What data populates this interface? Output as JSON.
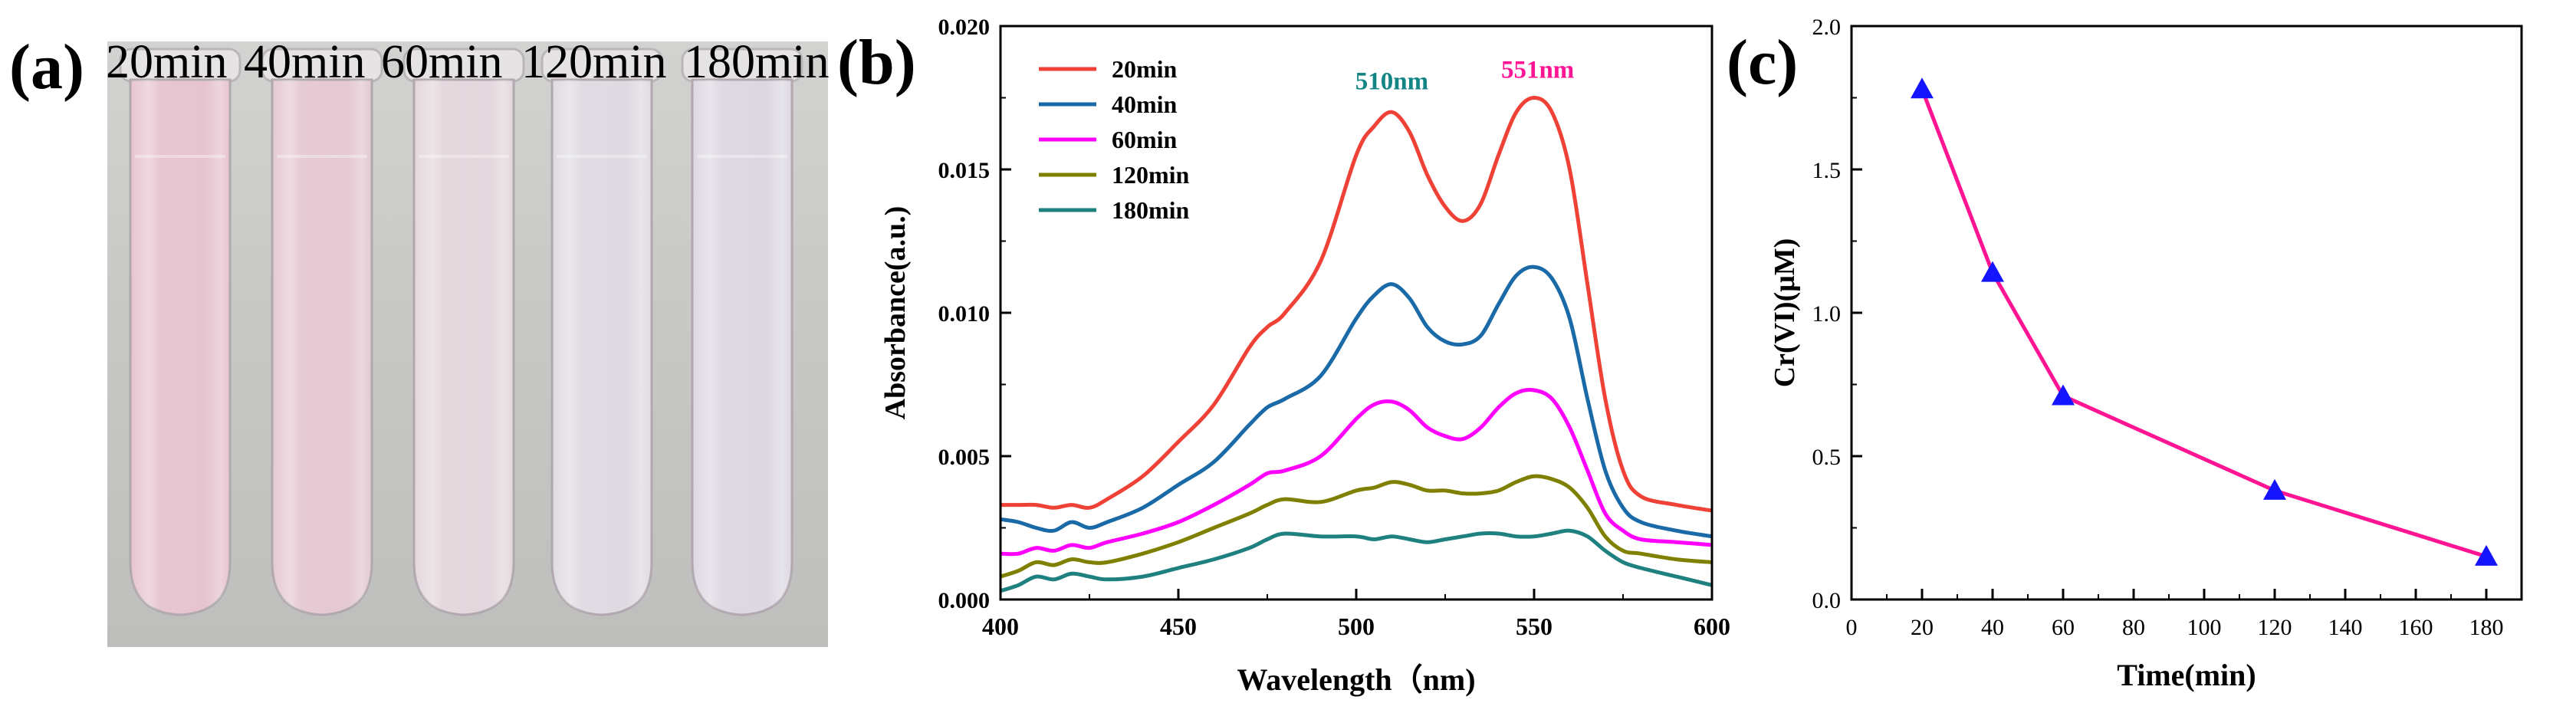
{
  "panels": {
    "a": {
      "letter": "(a)",
      "tube_labels": [
        "20min",
        "40min",
        "60min",
        "120min",
        "180min"
      ],
      "tube_tints": [
        "#e6c3cf",
        "#e4c8d2",
        "#e3d6dc",
        "#dedae2",
        "#dcd8e2"
      ]
    },
    "b": {
      "letter": "(b)"
    },
    "c": {
      "letter": "(c)"
    }
  },
  "colors": {
    "s20": "#ef4136",
    "s40": "#1a6aa8",
    "s60": "#ff00ff",
    "s120": "#7f7f00",
    "s180": "#1f8080",
    "peak510": "#138585",
    "peak551": "#ff1493",
    "line_c": "#ff1493",
    "marker_c": "#1414ff"
  },
  "chart_data": [
    {
      "id": "b",
      "type": "line",
      "xlabel": "Wavelength（nm)",
      "ylabel": "Absorbance(a.u.)",
      "xlim": [
        400,
        600
      ],
      "ylim": [
        0,
        0.02
      ],
      "xticks": [
        "400",
        "450",
        "500",
        "550",
        "600"
      ],
      "yticks": [
        "0.000",
        "0.005",
        "0.010",
        "0.015",
        "0.020"
      ],
      "annotations": [
        {
          "text": "510nm",
          "x": 510,
          "y": 0.0178
        },
        {
          "text": "551nm",
          "x": 551,
          "y": 0.0182
        }
      ],
      "series": [
        {
          "name": "20min",
          "x": [
            400,
            405,
            410,
            415,
            420,
            425,
            430,
            440,
            450,
            460,
            470,
            475,
            480,
            490,
            500,
            505,
            510,
            515,
            520,
            525,
            530,
            535,
            540,
            545,
            550,
            555,
            560,
            565,
            570,
            575,
            580,
            590,
            600
          ],
          "y": [
            0.0033,
            0.0033,
            0.0033,
            0.0032,
            0.0033,
            0.0032,
            0.0035,
            0.0043,
            0.0055,
            0.0068,
            0.0088,
            0.0095,
            0.01,
            0.0118,
            0.0155,
            0.0165,
            0.017,
            0.0163,
            0.0148,
            0.0137,
            0.0132,
            0.0138,
            0.0155,
            0.017,
            0.0175,
            0.017,
            0.015,
            0.011,
            0.007,
            0.0045,
            0.0036,
            0.0033,
            0.0031
          ]
        },
        {
          "name": "40min",
          "x": [
            400,
            405,
            410,
            415,
            420,
            425,
            430,
            440,
            450,
            460,
            470,
            475,
            480,
            490,
            500,
            505,
            510,
            515,
            520,
            525,
            530,
            535,
            540,
            545,
            550,
            555,
            560,
            565,
            570,
            575,
            580,
            590,
            600
          ],
          "y": [
            0.0028,
            0.0027,
            0.0025,
            0.0024,
            0.0027,
            0.0025,
            0.0027,
            0.0032,
            0.004,
            0.0048,
            0.0061,
            0.0067,
            0.007,
            0.0078,
            0.0098,
            0.0106,
            0.011,
            0.0105,
            0.0095,
            0.009,
            0.0089,
            0.0092,
            0.0103,
            0.0113,
            0.0116,
            0.0112,
            0.0098,
            0.007,
            0.0045,
            0.0032,
            0.0027,
            0.0024,
            0.0022
          ]
        },
        {
          "name": "60min",
          "x": [
            400,
            405,
            410,
            415,
            420,
            425,
            430,
            440,
            450,
            460,
            470,
            475,
            480,
            490,
            500,
            505,
            510,
            515,
            520,
            525,
            530,
            535,
            540,
            545,
            550,
            555,
            560,
            565,
            570,
            575,
            580,
            590,
            600
          ],
          "y": [
            0.0016,
            0.0016,
            0.0018,
            0.0017,
            0.0019,
            0.0018,
            0.002,
            0.0023,
            0.0027,
            0.0033,
            0.004,
            0.0044,
            0.0045,
            0.005,
            0.0063,
            0.0068,
            0.0069,
            0.0066,
            0.006,
            0.0057,
            0.0056,
            0.006,
            0.0067,
            0.0072,
            0.0073,
            0.007,
            0.006,
            0.0045,
            0.003,
            0.0024,
            0.0021,
            0.002,
            0.0019
          ]
        },
        {
          "name": "120min",
          "x": [
            400,
            405,
            410,
            415,
            420,
            425,
            430,
            440,
            450,
            460,
            470,
            475,
            480,
            490,
            500,
            505,
            510,
            515,
            520,
            525,
            530,
            535,
            540,
            545,
            550,
            555,
            560,
            565,
            570,
            575,
            580,
            590,
            600
          ],
          "y": [
            0.0008,
            0.001,
            0.0013,
            0.0012,
            0.0014,
            0.0013,
            0.0013,
            0.0016,
            0.002,
            0.0025,
            0.003,
            0.0033,
            0.0035,
            0.0034,
            0.0038,
            0.0039,
            0.0041,
            0.004,
            0.0038,
            0.0038,
            0.0037,
            0.0037,
            0.0038,
            0.0041,
            0.0043,
            0.0042,
            0.0039,
            0.0032,
            0.0022,
            0.0017,
            0.0016,
            0.0014,
            0.0013
          ]
        },
        {
          "name": "180min",
          "x": [
            400,
            405,
            410,
            415,
            420,
            425,
            430,
            440,
            450,
            460,
            470,
            475,
            480,
            490,
            500,
            505,
            510,
            515,
            520,
            525,
            530,
            535,
            540,
            545,
            550,
            555,
            560,
            565,
            570,
            575,
            580,
            590,
            600
          ],
          "y": [
            0.0003,
            0.0005,
            0.0008,
            0.0007,
            0.0009,
            0.0008,
            0.0007,
            0.0008,
            0.0011,
            0.0014,
            0.0018,
            0.0021,
            0.0023,
            0.0022,
            0.0022,
            0.0021,
            0.0022,
            0.0021,
            0.002,
            0.0021,
            0.0022,
            0.0023,
            0.0023,
            0.0022,
            0.0022,
            0.0023,
            0.0024,
            0.0022,
            0.0017,
            0.0013,
            0.0011,
            0.0008,
            0.0005
          ]
        }
      ]
    },
    {
      "id": "c",
      "type": "line",
      "xlabel": "Time(min)",
      "ylabel": "Cr(VI)(μM)",
      "xlim": [
        0,
        190
      ],
      "ylim": [
        0,
        2.0
      ],
      "xticks": [
        "0",
        "20",
        "40",
        "60",
        "80",
        "100",
        "120",
        "140",
        "160",
        "180"
      ],
      "yticks": [
        "0.0",
        "0.5",
        "1.0",
        "1.5",
        "2.0"
      ],
      "series": [
        {
          "name": "Cr(VI)",
          "x": [
            20,
            40,
            60,
            120,
            180
          ],
          "y": [
            1.78,
            1.14,
            0.71,
            0.38,
            0.15
          ]
        }
      ]
    }
  ]
}
